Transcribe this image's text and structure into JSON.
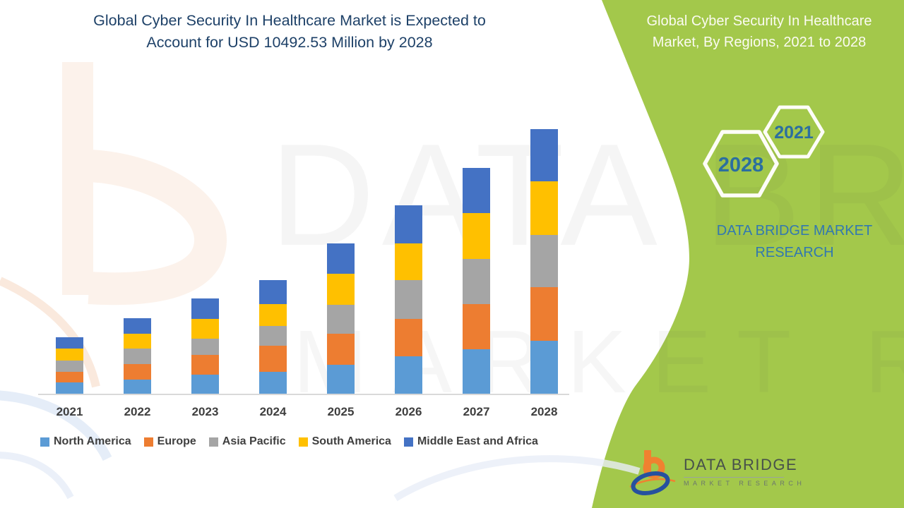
{
  "title": {
    "line1": "Global Cyber Security In Healthcare Market is Expected to",
    "line2": "Account for USD 10492.53 Million by 2028"
  },
  "panel": {
    "bg_color": "#A3C84B",
    "header_line1": "Global Cyber Security In Healthcare",
    "header_line2": "Market, By Regions, 2021 to 2028",
    "hex_years": {
      "small": "2021",
      "large": "2028"
    },
    "brand_line1": "DATA BRIDGE MARKET",
    "brand_line2": "RESEARCH",
    "logo": {
      "name": "DATA BRIDGE",
      "subtitle": "MARKET RESEARCH"
    }
  },
  "watermark": {
    "row1": "DATA BRIDGE",
    "row2": "MARKET RESEARCH"
  },
  "chart_data": {
    "type": "bar",
    "stacked": true,
    "title": "Global Cyber Security In Healthcare Market, By Regions, 2021 to 2028",
    "value_unit": "USD Million",
    "categories": [
      "2021",
      "2022",
      "2023",
      "2024",
      "2025",
      "2026",
      "2027",
      "2028"
    ],
    "series": [
      {
        "name": "North America",
        "color": "#5B9BD5",
        "values": [
          445,
          560,
          745,
          860,
          1155,
          1475,
          1765,
          2095
        ]
      },
      {
        "name": "Europe",
        "color": "#ED7D31",
        "values": [
          430,
          610,
          785,
          1045,
          1230,
          1485,
          1800,
          2120
        ]
      },
      {
        "name": "Asia Pacific",
        "color": "#A5A5A5",
        "values": [
          450,
          610,
          655,
          785,
          1130,
          1540,
          1790,
          2085
        ]
      },
      {
        "name": "South America",
        "color": "#FFC000",
        "values": [
          465,
          610,
          790,
          875,
          1250,
          1455,
          1820,
          2120
        ]
      },
      {
        "name": "Middle East and Africa",
        "color": "#4472C4",
        "values": [
          450,
          605,
          795,
          945,
          1205,
          1520,
          1775,
          2072.53
        ]
      }
    ],
    "totals_estimated": [
      2240,
      2995,
      3770,
      4510,
      5970,
      7475,
      8950,
      10492.53
    ],
    "ylim": [
      0,
      10492.53
    ],
    "gridlines": false,
    "y_axis_visible": false,
    "legend_position": "bottom"
  }
}
